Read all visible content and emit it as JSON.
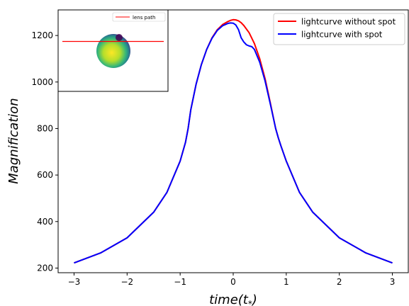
{
  "chart_data": {
    "type": "line",
    "xlabel": "time(t",
    "xlabel_subscript": "*",
    "xlabel_close": ")",
    "ylabel": "Magnification",
    "xlim": [
      -3.3,
      3.3
    ],
    "ylim": [
      180,
      1310
    ],
    "xticks": [
      -3,
      -2,
      -1,
      0,
      1,
      2,
      3
    ],
    "xtick_labels": [
      "−3",
      "−2",
      "−1",
      "0",
      "1",
      "2",
      "3"
    ],
    "yticks": [
      200,
      400,
      600,
      800,
      1000,
      1200
    ],
    "ytick_labels": [
      "200",
      "400",
      "600",
      "800",
      "1000",
      "1200"
    ],
    "legend_position": "upper right",
    "series": [
      {
        "name": "lightcurve without spot",
        "color": "#ff0000",
        "x": [
          -3.0,
          -2.5,
          -2.0,
          -1.5,
          -1.25,
          -1.0,
          -0.9,
          -0.85,
          -0.8,
          -0.7,
          -0.6,
          -0.5,
          -0.4,
          -0.3,
          -0.2,
          -0.1,
          -0.05,
          0.0,
          0.05,
          0.1,
          0.15,
          0.2,
          0.3,
          0.4,
          0.5,
          0.6,
          0.7,
          0.8,
          0.85,
          0.9,
          1.0,
          1.25,
          1.5,
          2.0,
          2.5,
          3.0
        ],
        "y": [
          222,
          265,
          330,
          440,
          525,
          660,
          740,
          800,
          880,
          990,
          1075,
          1140,
          1190,
          1225,
          1247,
          1260,
          1265,
          1268,
          1267,
          1263,
          1255,
          1243,
          1212,
          1165,
          1100,
          1015,
          910,
          800,
          760,
          725,
          660,
          525,
          440,
          330,
          265,
          222
        ]
      },
      {
        "name": "lightcurve with spot",
        "color": "#0000ff",
        "x": [
          -3.0,
          -2.5,
          -2.0,
          -1.5,
          -1.25,
          -1.0,
          -0.9,
          -0.85,
          -0.8,
          -0.7,
          -0.6,
          -0.5,
          -0.4,
          -0.3,
          -0.2,
          -0.1,
          -0.05,
          0.0,
          0.05,
          0.1,
          0.15,
          0.2,
          0.25,
          0.3,
          0.35,
          0.4,
          0.5,
          0.6,
          0.7,
          0.8,
          0.85,
          0.9,
          1.0,
          1.25,
          1.5,
          2.0,
          2.5,
          3.0
        ],
        "y": [
          222,
          265,
          330,
          440,
          525,
          660,
          740,
          800,
          880,
          990,
          1075,
          1140,
          1188,
          1222,
          1242,
          1252,
          1254,
          1253,
          1245,
          1225,
          1190,
          1172,
          1160,
          1155,
          1152,
          1140,
          1085,
          1005,
          905,
          800,
          760,
          725,
          660,
          525,
          440,
          330,
          265,
          222
        ]
      }
    ],
    "inset": {
      "legend_label": "lens path",
      "legend_color": "#ff0000"
    }
  }
}
